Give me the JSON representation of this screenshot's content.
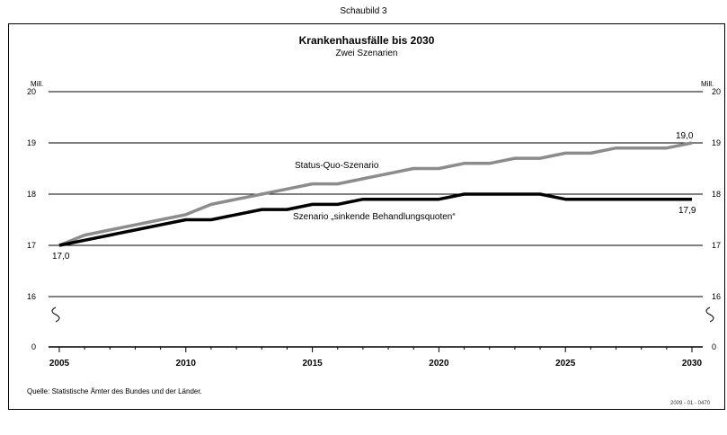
{
  "figure": {
    "label": "Schaubild 3",
    "source": "Quelle: Statistische Ämter des Bundes und der Länder.",
    "code": "2009 - 01 - 0470"
  },
  "chart_data": {
    "type": "line",
    "title": "Krankenhausfälle bis 2030",
    "subtitle": "Zwei Szenarien",
    "ylabel_left": "Mill.",
    "ylabel_right": "Mill.",
    "xlim": [
      2005,
      2030
    ],
    "ylim": [
      16,
      20
    ],
    "y_break": true,
    "y_ticks": [
      0,
      16,
      17,
      18,
      19,
      20
    ],
    "x_ticks": [
      2005,
      2010,
      2015,
      2020,
      2025,
      2030
    ],
    "grid": "horizontal",
    "x": [
      2005,
      2006,
      2007,
      2008,
      2009,
      2010,
      2011,
      2012,
      2013,
      2014,
      2015,
      2016,
      2017,
      2018,
      2019,
      2020,
      2021,
      2022,
      2023,
      2024,
      2025,
      2026,
      2027,
      2028,
      2029,
      2030
    ],
    "series": [
      {
        "name": "Status-Quo-Szenario",
        "color": "#8c8c8c",
        "values": [
          17.0,
          17.2,
          17.3,
          17.4,
          17.5,
          17.6,
          17.8,
          17.9,
          18.0,
          18.1,
          18.2,
          18.2,
          18.3,
          18.4,
          18.5,
          18.5,
          18.6,
          18.6,
          18.7,
          18.7,
          18.8,
          18.8,
          18.9,
          18.9,
          18.9,
          19.0
        ]
      },
      {
        "name": "Szenario „sinkende Behandlungsquoten“",
        "color": "#000000",
        "values": [
          17.0,
          17.1,
          17.2,
          17.3,
          17.4,
          17.5,
          17.5,
          17.6,
          17.7,
          17.7,
          17.8,
          17.8,
          17.9,
          17.9,
          17.9,
          17.9,
          18.0,
          18.0,
          18.0,
          18.0,
          17.9,
          17.9,
          17.9,
          17.9,
          17.9,
          17.9
        ]
      }
    ],
    "annotations": {
      "start_value": "17,0",
      "end_status_quo": "19,0",
      "end_sinkend": "17,9"
    }
  }
}
